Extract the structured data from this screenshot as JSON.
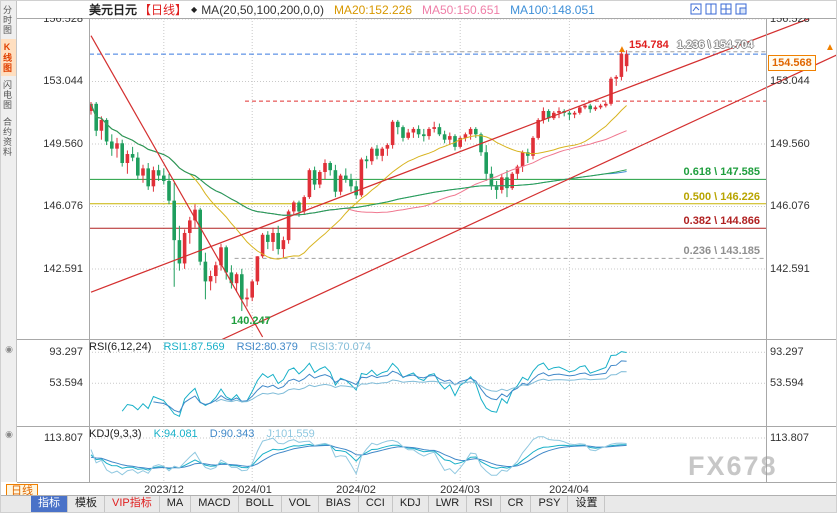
{
  "header": {
    "symbol": "美元日元",
    "period_tag": "【日线】",
    "ma_settings": "MA(20,50,100,200,0,0)",
    "ma20": "MA20:152.226",
    "ma50": "MA50:150.651",
    "ma100": "MA100:148.051"
  },
  "sidebar": {
    "items": [
      {
        "label": "分时图"
      },
      {
        "label": "K线图",
        "active": true
      },
      {
        "label": "闪电图"
      },
      {
        "label": "合约资料"
      }
    ]
  },
  "main_axis": {
    "labels": [
      "156.528",
      "153.044",
      "149.560",
      "146.076",
      "142.591"
    ]
  },
  "fib_labels": {
    "f1236": "1.236 \\ 154.704",
    "f618": "0.618 \\ 147.585",
    "f500": "0.500 \\ 146.226",
    "f382": "0.382 \\ 144.866",
    "f236": "0.236 \\ 143.185"
  },
  "markers": {
    "high": "154.784",
    "low": "140.247",
    "current": "154.568",
    "arrow": "▲"
  },
  "rsi_panel": {
    "title": "RSI(6,12,24)",
    "rsi1": "RSI1:87.569",
    "rsi2": "RSI2:80.379",
    "rsi3": "RSI3:70.074",
    "axis": [
      "93.297",
      "53.594"
    ]
  },
  "kdj_panel": {
    "title": "KDJ(9,3,3)",
    "k": "K:94.081",
    "d": "D:90.343",
    "j": "J:101.559",
    "axis": [
      "113.807"
    ]
  },
  "dates": [
    "2023/12",
    "2024/01",
    "2024/02",
    "2024/03",
    "2024/04"
  ],
  "watermark": "FX678",
  "period_button": "日线",
  "toolbar": {
    "tabs": [
      {
        "label": "指标"
      },
      {
        "label": "模板"
      },
      {
        "label": "VIP指标"
      },
      {
        "label": "MA"
      },
      {
        "label": "MACD"
      },
      {
        "label": "BOLL"
      },
      {
        "label": "VOL"
      },
      {
        "label": "BIAS"
      },
      {
        "label": "CCI"
      },
      {
        "label": "KDJ"
      },
      {
        "label": "LWR"
      },
      {
        "label": "RSI"
      },
      {
        "label": "CR"
      },
      {
        "label": "PSY"
      },
      {
        "label": "设置"
      }
    ]
  },
  "colors": {
    "up": "#e03038",
    "down": "#1f9e5e",
    "trend": "#d43030",
    "ma": [
      "#d8b420",
      "#f07890",
      "#4090d0",
      "#2aa050"
    ],
    "rsi": [
      "#18b0c8",
      "#4088c8",
      "#80bcd8"
    ],
    "kdj": [
      "#18b0c8",
      "#4088c8",
      "#90c8e0"
    ],
    "accent_orange": "#f08000",
    "accent_blue": "#3a6ad4",
    "grid": "#c9c9c9",
    "border": "#a8a8a8"
  },
  "chart_data": {
    "type": "candlestick",
    "symbol": "USD/JPY daily",
    "y_axis": [
      156.528,
      153.044,
      149.56,
      146.076,
      142.591
    ],
    "month_indices": [
      14,
      31,
      51,
      71,
      92
    ],
    "ma_periods": [
      20,
      50,
      100,
      200
    ],
    "rsi_periods": [
      6,
      12,
      24
    ],
    "kdj_params": [
      9,
      3,
      3
    ],
    "rsi_grid": [
      93.297,
      53.594
    ],
    "kdj_grid": [
      113.807
    ],
    "markers": {
      "high": 154.784,
      "low": 140.247,
      "last": 154.568
    },
    "h_lines": [
      {
        "price": 154.704,
        "from": 62,
        "color": "#a0a0a0",
        "dash": "4,3"
      },
      {
        "price": 154.568,
        "from": 0,
        "color": "#3a7ae0",
        "dash": "5,3"
      },
      {
        "price": 151.95,
        "from": 30,
        "color": "#e03030",
        "dash": "4,3"
      },
      {
        "price": 147.585,
        "from": 0,
        "color": "#1f9e3e",
        "dash": ""
      },
      {
        "price": 146.226,
        "from": 0,
        "color": "#c8b400",
        "dash": ""
      },
      {
        "price": 144.866,
        "from": 0,
        "color": "#b02020",
        "dash": ""
      },
      {
        "price": 143.185,
        "from": 28,
        "color": "#a0a0a0",
        "dash": "4,3"
      }
    ],
    "trendlines": [
      {
        "i1": 0,
        "p1": 155.6,
        "i2": 33,
        "p2": 138.8
      },
      {
        "i1": 24,
        "p1": 138.5,
        "i2": 144,
        "p2": 154.6
      },
      {
        "i1": 0,
        "p1": 141.3,
        "i2": 144,
        "p2": 157.2
      }
    ],
    "candles": [
      [
        151.4,
        151.9,
        151.2,
        151.8
      ],
      [
        151.8,
        151.9,
        150.0,
        150.3
      ],
      [
        150.3,
        151.1,
        149.8,
        150.9
      ],
      [
        150.9,
        151.0,
        149.5,
        149.7
      ],
      [
        149.7,
        150.1,
        148.9,
        149.3
      ],
      [
        149.3,
        149.9,
        148.8,
        149.6
      ],
      [
        149.6,
        149.8,
        148.3,
        148.5
      ],
      [
        148.5,
        149.2,
        147.9,
        149.0
      ],
      [
        149.0,
        149.4,
        148.6,
        148.8
      ],
      [
        148.8,
        149.1,
        147.6,
        147.8
      ],
      [
        147.8,
        148.4,
        147.4,
        148.2
      ],
      [
        148.2,
        148.5,
        147.0,
        147.2
      ],
      [
        147.2,
        148.3,
        146.9,
        148.1
      ],
      [
        148.1,
        148.4,
        147.5,
        147.8
      ],
      [
        147.8,
        148.2,
        147.3,
        147.5
      ],
      [
        147.5,
        147.9,
        146.2,
        146.4
      ],
      [
        146.4,
        147.4,
        141.6,
        144.2
      ],
      [
        144.2,
        145.0,
        142.5,
        142.9
      ],
      [
        142.9,
        144.8,
        142.6,
        144.6
      ],
      [
        144.6,
        145.5,
        144.0,
        145.3
      ],
      [
        145.3,
        146.2,
        144.9,
        145.9
      ],
      [
        145.9,
        146.0,
        142.8,
        143.0
      ],
      [
        143.0,
        143.5,
        140.9,
        141.9
      ],
      [
        141.9,
        142.5,
        141.4,
        142.2
      ],
      [
        142.2,
        143.0,
        141.8,
        142.8
      ],
      [
        142.8,
        144.0,
        142.5,
        143.8
      ],
      [
        143.8,
        143.9,
        142.0,
        142.4
      ],
      [
        142.4,
        142.8,
        141.5,
        141.8
      ],
      [
        141.8,
        142.4,
        141.3,
        142.3
      ],
      [
        142.3,
        142.6,
        140.247,
        140.9
      ],
      [
        140.9,
        141.5,
        140.5,
        141.0
      ],
      [
        141.0,
        142.0,
        140.8,
        141.9
      ],
      [
        141.9,
        143.3,
        141.7,
        143.3
      ],
      [
        143.3,
        144.6,
        143.2,
        144.5
      ],
      [
        144.5,
        144.7,
        143.7,
        144.1
      ],
      [
        144.1,
        144.9,
        143.6,
        144.6
      ],
      [
        144.6,
        145.0,
        143.4,
        143.7
      ],
      [
        143.7,
        144.4,
        143.2,
        144.2
      ],
      [
        144.2,
        145.9,
        144.0,
        145.8
      ],
      [
        145.8,
        146.4,
        145.6,
        146.3
      ],
      [
        146.3,
        146.4,
        145.5,
        145.8
      ],
      [
        145.8,
        146.7,
        145.6,
        146.6
      ],
      [
        146.6,
        148.2,
        146.5,
        148.1
      ],
      [
        148.1,
        148.3,
        147.0,
        147.3
      ],
      [
        147.3,
        148.1,
        147.1,
        148.0
      ],
      [
        148.0,
        148.7,
        147.6,
        148.5
      ],
      [
        148.5,
        148.6,
        147.8,
        148.1
      ],
      [
        148.1,
        148.4,
        146.6,
        146.9
      ],
      [
        146.9,
        147.9,
        146.7,
        147.8
      ],
      [
        147.8,
        148.2,
        147.4,
        147.6
      ],
      [
        147.6,
        147.9,
        146.9,
        147.2
      ],
      [
        147.2,
        147.5,
        146.5,
        146.7
      ],
      [
        146.7,
        148.8,
        146.6,
        148.7
      ],
      [
        148.7,
        148.9,
        148.2,
        148.6
      ],
      [
        148.6,
        149.4,
        148.4,
        149.3
      ],
      [
        149.3,
        149.5,
        148.7,
        148.9
      ],
      [
        148.9,
        149.4,
        148.6,
        149.3
      ],
      [
        149.3,
        149.6,
        148.9,
        149.5
      ],
      [
        149.5,
        150.9,
        149.3,
        150.8
      ],
      [
        150.8,
        150.9,
        150.1,
        150.5
      ],
      [
        150.5,
        150.6,
        149.7,
        149.9
      ],
      [
        149.9,
        150.4,
        149.8,
        150.2
      ],
      [
        150.2,
        150.5,
        149.9,
        150.4
      ],
      [
        150.4,
        150.6,
        149.9,
        150.1
      ],
      [
        150.1,
        150.4,
        149.7,
        150.0
      ],
      [
        150.0,
        150.5,
        149.8,
        150.4
      ],
      [
        150.4,
        150.8,
        150.2,
        150.5
      ],
      [
        150.5,
        150.7,
        150.0,
        150.1
      ],
      [
        150.1,
        150.3,
        149.6,
        149.8
      ],
      [
        149.8,
        150.2,
        149.5,
        150.0
      ],
      [
        150.0,
        150.1,
        149.2,
        149.4
      ],
      [
        149.4,
        150.0,
        149.3,
        149.9
      ],
      [
        149.9,
        150.2,
        149.7,
        150.1
      ],
      [
        150.1,
        150.5,
        149.8,
        150.4
      ],
      [
        150.4,
        150.5,
        149.9,
        150.1
      ],
      [
        150.1,
        150.2,
        148.9,
        149.1
      ],
      [
        149.1,
        149.5,
        147.5,
        147.9
      ],
      [
        147.9,
        148.3,
        147.0,
        147.2
      ],
      [
        147.2,
        147.5,
        146.5,
        147.0
      ],
      [
        147.0,
        147.9,
        146.8,
        147.7
      ],
      [
        147.7,
        148.1,
        146.6,
        147.1
      ],
      [
        147.1,
        148.0,
        147.0,
        147.9
      ],
      [
        147.9,
        148.4,
        147.6,
        148.3
      ],
      [
        148.3,
        149.2,
        148.0,
        149.1
      ],
      [
        149.1,
        149.3,
        148.5,
        148.9
      ],
      [
        148.9,
        150.0,
        148.7,
        149.9
      ],
      [
        149.9,
        151.0,
        149.8,
        150.9
      ],
      [
        150.9,
        151.6,
        150.7,
        151.4
      ],
      [
        151.4,
        151.5,
        150.8,
        151.0
      ],
      [
        151.0,
        151.4,
        150.9,
        151.3
      ],
      [
        151.3,
        151.6,
        151.0,
        151.4
      ],
      [
        151.4,
        151.5,
        151.1,
        151.3
      ],
      [
        151.3,
        151.4,
        150.9,
        151.2
      ],
      [
        151.2,
        151.4,
        151.0,
        151.3
      ],
      [
        151.3,
        151.7,
        151.2,
        151.6
      ],
      [
        151.6,
        151.8,
        151.5,
        151.7
      ],
      [
        151.7,
        151.8,
        151.3,
        151.5
      ],
      [
        151.5,
        151.7,
        151.4,
        151.6
      ],
      [
        151.6,
        151.8,
        151.5,
        151.7
      ],
      [
        151.7,
        151.9,
        151.6,
        151.8
      ],
      [
        151.8,
        153.3,
        151.7,
        153.2
      ],
      [
        153.2,
        153.4,
        152.8,
        153.3
      ],
      [
        153.3,
        154.8,
        153.1,
        154.6
      ],
      [
        153.9,
        154.784,
        153.6,
        154.568
      ]
    ]
  }
}
